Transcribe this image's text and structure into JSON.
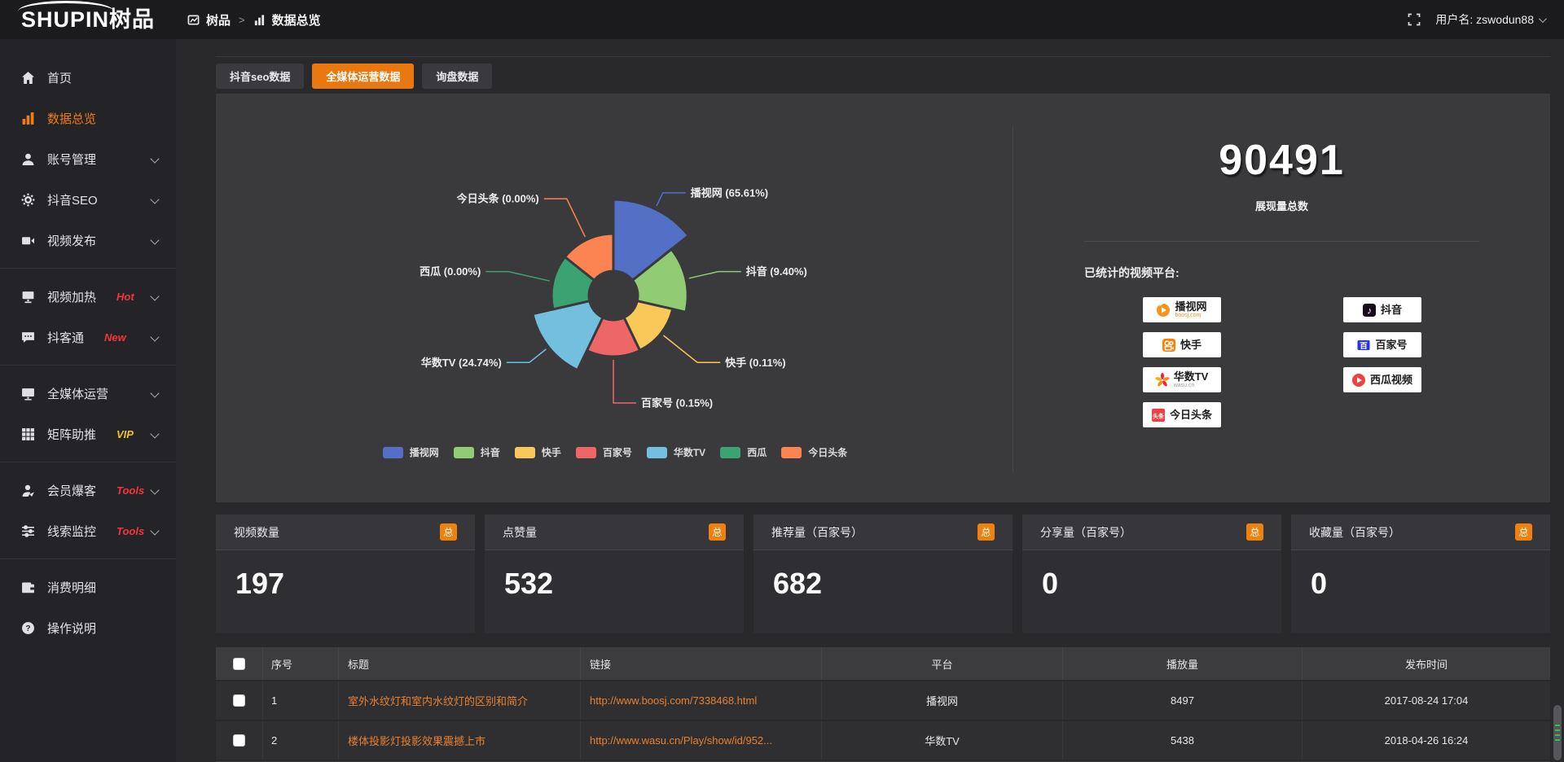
{
  "header": {
    "logo_text": "SHUPIN树品",
    "breadcrumb": {
      "root": "树品",
      "separator": ">",
      "current": "数据总览"
    },
    "fullscreen_icon": "fullscreen-icon",
    "username_label": "用户名: zswodun88"
  },
  "sidebar": {
    "items": [
      {
        "label": "首页",
        "icon": "home-icon",
        "active": false,
        "chevron": false,
        "divider_after": false
      },
      {
        "label": "数据总览",
        "icon": "bar-chart-icon",
        "active": true,
        "chevron": false,
        "divider_after": false
      },
      {
        "label": "账号管理",
        "icon": "user-icon",
        "active": false,
        "chevron": true,
        "divider_after": false
      },
      {
        "label": "抖音SEO",
        "icon": "gear-icon",
        "active": false,
        "chevron": true,
        "divider_after": false
      },
      {
        "label": "视频发布",
        "icon": "video-publish-icon",
        "active": false,
        "chevron": true,
        "divider_after": true
      },
      {
        "label": "视频加热",
        "icon": "screen-icon",
        "badge": "Hot",
        "badge_color": "#f5353c",
        "active": false,
        "chevron": true,
        "divider_after": false
      },
      {
        "label": "抖客通",
        "icon": "chat-icon",
        "badge": "New",
        "badge_color": "#f5353c",
        "active": false,
        "chevron": true,
        "divider_after": true
      },
      {
        "label": "全媒体运营",
        "icon": "monitor-icon",
        "active": false,
        "chevron": true,
        "divider_after": false
      },
      {
        "label": "矩阵助推",
        "icon": "grid-icon",
        "badge": "VIP",
        "badge_color": "#eec325",
        "active": false,
        "chevron": true,
        "divider_after": true
      },
      {
        "label": "会员爆客",
        "icon": "member-icon",
        "badge": "Tools",
        "badge_color": "#f5353c",
        "active": false,
        "chevron": true,
        "divider_after": false
      },
      {
        "label": "线索监控",
        "icon": "sliders-icon",
        "badge": "Tools",
        "badge_color": "#f5353c",
        "active": false,
        "chevron": true,
        "divider_after": true
      },
      {
        "label": "消费明细",
        "icon": "wallet-icon",
        "active": false,
        "chevron": false,
        "divider_after": false
      },
      {
        "label": "操作说明",
        "icon": "help-icon",
        "active": false,
        "chevron": false,
        "divider_after": false
      }
    ]
  },
  "tabs": [
    {
      "label": "抖音seo数据",
      "active": false
    },
    {
      "label": "全媒体运营数据",
      "active": true
    },
    {
      "label": "询盘数据",
      "active": false
    }
  ],
  "chart_data": {
    "type": "pie",
    "subtype": "nightingale-rose",
    "categories": [
      "播视网",
      "抖音",
      "快手",
      "百家号",
      "华数TV",
      "西瓜",
      "今日头条"
    ],
    "values": [
      65.61,
      9.4,
      0.11,
      0.15,
      24.74,
      0.0,
      0.0
    ],
    "unit": "%",
    "labels": [
      "播视网 (65.61%)",
      "抖音 (9.40%)",
      "快手 (0.11%)",
      "百家号 (0.15%)",
      "华数TV (24.74%)",
      "西瓜 (0.00%)",
      "今日头条 (0.00%)"
    ],
    "colors": [
      "#5470c6",
      "#91cc75",
      "#fac858",
      "#ee6666",
      "#73c0de",
      "#3ba272",
      "#fc8452"
    ],
    "legend": [
      "播视网",
      "抖音",
      "快手",
      "百家号",
      "华数TV",
      "西瓜",
      "今日头条"
    ],
    "legend_position": "bottom",
    "title": "",
    "grid": false
  },
  "overview": {
    "total_value": "90491",
    "total_label": "展现量总数",
    "platforms_title": "已统计的视频平台:",
    "platforms_left": [
      {
        "icon": "boosj-icon",
        "label": "播视网",
        "sub": "boosj.com",
        "sub_style": "orange"
      },
      {
        "icon": "kuaishou-icon",
        "label": "快手",
        "sub": ""
      },
      {
        "icon": "wasu-icon",
        "label": "华数TV",
        "sub": "wasu.cn",
        "sub_style": "gray"
      },
      {
        "icon": "toutiao-icon",
        "label": "今日头条",
        "sub": ""
      }
    ],
    "platforms_right": [
      {
        "icon": "douyin-icon",
        "label": "抖音",
        "sub": ""
      },
      {
        "icon": "baijiahao-icon",
        "label": "百家号",
        "sub": ""
      },
      {
        "icon": "xigua-icon",
        "label": "西瓜视频",
        "sub": ""
      }
    ]
  },
  "stat_cards": [
    {
      "label": "视频数量",
      "badge": "总",
      "value": "197"
    },
    {
      "label": "点赞量",
      "badge": "总",
      "value": "532"
    },
    {
      "label": "推荐量（百家号）",
      "badge": "总",
      "value": "682"
    },
    {
      "label": "分享量（百家号）",
      "badge": "总",
      "value": "0"
    },
    {
      "label": "收藏量（百家号）",
      "badge": "总",
      "value": "0"
    }
  ],
  "table": {
    "headers": [
      "",
      "序号",
      "标题",
      "链接",
      "平台",
      "播放量",
      "发布时间"
    ],
    "rows": [
      {
        "index": "1",
        "title": "室外水纹灯和室内水纹灯的区别和简介",
        "link": "http://www.boosj.com/7338468.html",
        "platform": "播视网",
        "views": "8497",
        "time": "2017-08-24 17:04"
      },
      {
        "index": "2",
        "title": "楼体投影灯投影效果震撼上市",
        "link": "http://www.wasu.cn/Play/show/id/952...",
        "platform": "华数TV",
        "views": "5438",
        "time": "2018-04-26 16:24"
      }
    ]
  },
  "colors": {
    "accent_orange": "#ee7e11",
    "tab_active": "#e8780f",
    "link_orange": "#e8812f",
    "hot_red": "#f5353c",
    "vip_yellow": "#eec325",
    "panel_bg": "#3a3a3d"
  }
}
